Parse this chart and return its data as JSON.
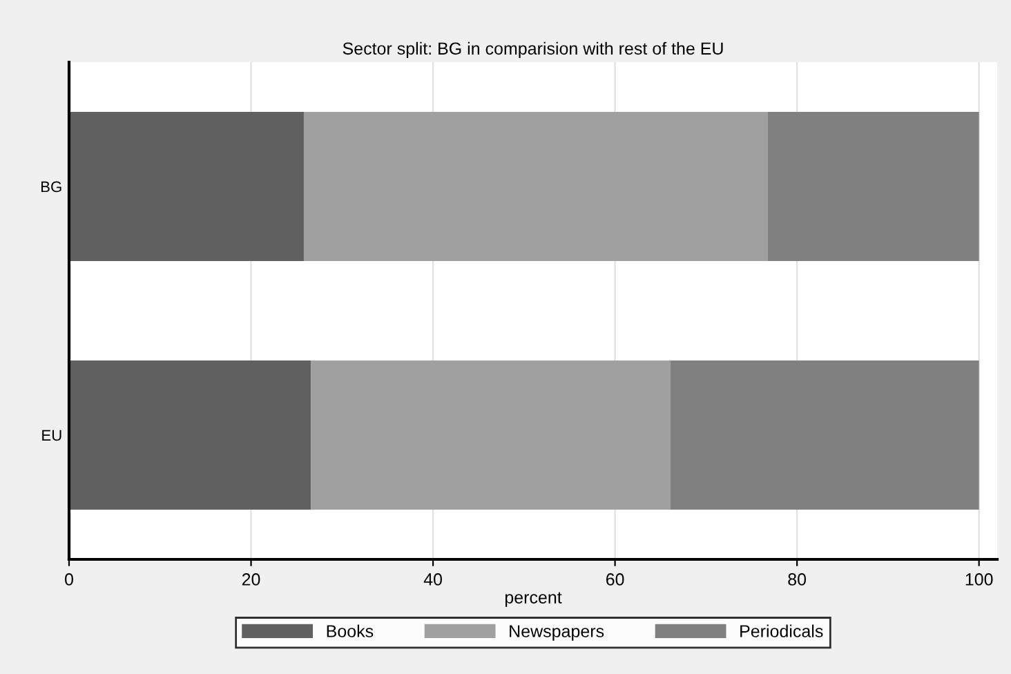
{
  "chart_data": {
    "type": "bar",
    "orientation": "horizontal",
    "stacked": true,
    "title": "Sector split: BG in comparision with rest of the EU",
    "xlabel": "percent",
    "categories": [
      "BG",
      "EU"
    ],
    "series": [
      {
        "name": "Books",
        "color": "#606060",
        "values": [
          25.8,
          26.6
        ]
      },
      {
        "name": "Newspapers",
        "color": "#a0a0a0",
        "values": [
          51.0,
          39.5
        ]
      },
      {
        "name": "Periodicals",
        "color": "#808080",
        "values": [
          23.2,
          33.9
        ]
      }
    ],
    "xlim": [
      0,
      102
    ],
    "xticks": [
      0,
      20,
      40,
      60,
      80,
      100
    ],
    "grid": "x",
    "legend": "bottom"
  }
}
